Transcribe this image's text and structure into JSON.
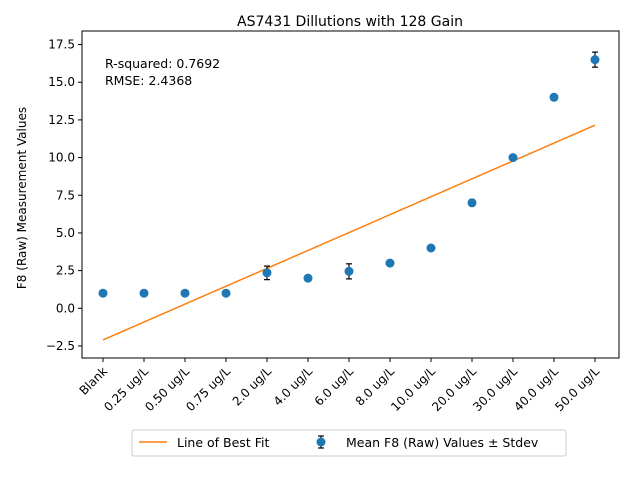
{
  "chart_data": {
    "type": "scatter",
    "title": "AS7431 Dillutions with 128 Gain",
    "xlabel": "",
    "ylabel": "F8 (Raw) Measurement Values",
    "categories": [
      "Blank",
      "0.25 ug/L",
      "0.50 ug/L",
      "0.75 ug/L",
      "2.0 ug/L",
      "4.0 ug/L",
      "6.0 ug/L",
      "8.0 ug/L",
      "10.0 ug/L",
      "20.0 ug/L",
      "30.0 ug/L",
      "40.0 ug/L",
      "50.0 ug/L"
    ],
    "series": [
      {
        "name": "Mean F8 (Raw) Values ± Stdev",
        "values": [
          1.0,
          1.0,
          1.0,
          1.0,
          2.35,
          2.0,
          2.45,
          3.0,
          4.0,
          7.0,
          10.0,
          14.0,
          16.5
        ],
        "errors": [
          0.0,
          0.0,
          0.0,
          0.0,
          0.45,
          0.0,
          0.5,
          0.0,
          0.0,
          0.2,
          0.0,
          0.0,
          0.5
        ],
        "color": "#1f77b4"
      },
      {
        "name": "Line of Best Fit",
        "line_start": -2.1,
        "line_end": 12.15,
        "color": "#ff7f0e"
      }
    ],
    "annotation": [
      "R-squared: 0.7692",
      "RMSE: 2.4368"
    ],
    "ylim": [
      -3.3,
      18.4
    ],
    "yticks": [
      -2.5,
      0.0,
      2.5,
      5.0,
      7.5,
      10.0,
      12.5,
      15.0,
      17.5
    ],
    "ytick_labels": [
      "−2.5",
      "0.0",
      "2.5",
      "5.0",
      "7.5",
      "10.0",
      "12.5",
      "15.0",
      "17.5"
    ],
    "grid": false,
    "legend_position": "bottom-center"
  }
}
